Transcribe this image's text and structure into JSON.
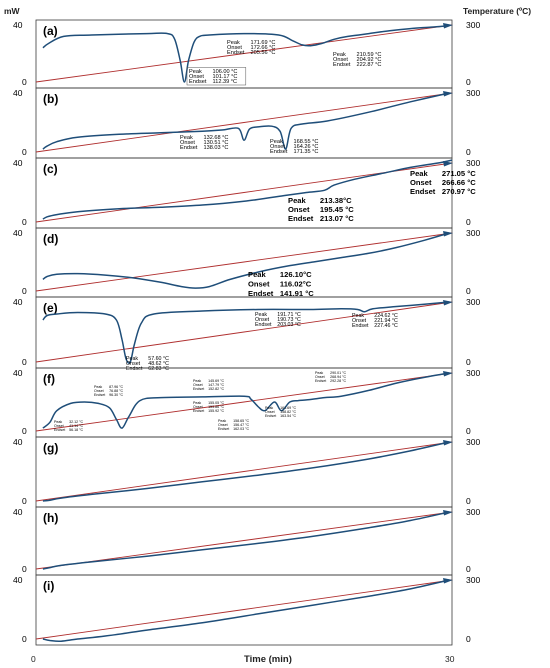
{
  "figure": {
    "y_left_title": "mW",
    "y_right_title": "Temperature (ºC)",
    "x_title": "Time (min)",
    "x_ticks": [
      "0",
      "30"
    ]
  },
  "chart_data": [
    {
      "type": "line",
      "label": "(a)",
      "xlim": [
        0,
        30
      ],
      "ylim_left": [
        0,
        40
      ],
      "ylim_right": [
        0,
        300
      ],
      "left_ticks": [
        "40",
        "0"
      ],
      "right_ticks": [
        "300",
        "0"
      ],
      "grid": false,
      "series": [
        {
          "axis": "left",
          "color": "#1f4e79",
          "x": [
            0.5,
            0.9,
            2,
            4,
            8,
            9.5,
            10.0,
            10.4,
            10.7,
            11.0,
            11.4,
            11.8,
            12.5,
            15,
            17.5,
            18.5,
            19.2,
            19.8,
            20.6,
            21.5,
            22.5,
            24,
            25.5,
            27,
            28.5,
            29.8
          ],
          "y": [
            24,
            27,
            32,
            33,
            34,
            34,
            30,
            15,
            0,
            15,
            28,
            32,
            33,
            34,
            33,
            29,
            26,
            25.5,
            27,
            30,
            32,
            34,
            36,
            37.5,
            38.5,
            39.5
          ]
        },
        {
          "axis": "right",
          "color": "#b03030",
          "x": [
            0,
            30
          ],
          "y": [
            0,
            300
          ]
        }
      ],
      "annotations": [
        {
          "peak": "171.69 °C",
          "onset": "172.66 °C",
          "endset": "205.56 °C"
        },
        {
          "peak": "210.59 °C",
          "onset": "204.92 °C",
          "endset": "222.87 °C"
        },
        {
          "peak": "106.00 °C",
          "onset": "101.17 °C",
          "endset": "112.39 °C"
        }
      ]
    },
    {
      "type": "line",
      "label": "(b)",
      "xlim": [
        0,
        30
      ],
      "ylim_left": [
        0,
        40
      ],
      "ylim_right": [
        0,
        300
      ],
      "left_ticks": [
        "40",
        "0"
      ],
      "right_ticks": [
        "300",
        "0"
      ],
      "grid": false,
      "series": [
        {
          "axis": "left",
          "color": "#1f4e79",
          "x": [
            0.5,
            0.8,
            1.5,
            3,
            6,
            9,
            12,
            13.5,
            14.6,
            15.0,
            15.4,
            16,
            17,
            17.6,
            18.0,
            18.4,
            19.2,
            21,
            24,
            27,
            29.8
          ],
          "y": [
            2,
            4,
            7,
            10,
            12,
            13,
            14,
            15,
            16,
            8,
            15.5,
            17,
            17.5,
            14,
            2,
            16,
            19,
            21,
            27,
            34,
            40
          ]
        },
        {
          "axis": "right",
          "color": "#b03030",
          "x": [
            0,
            30
          ],
          "y": [
            0,
            300
          ]
        }
      ],
      "annotations": [
        {
          "peak": "132.68 °C",
          "onset": "130.51 °C",
          "endset": "138.03 °C"
        },
        {
          "peak": "168.55 °C",
          "onset": "164.26 °C",
          "endset": "171.35 °C"
        }
      ]
    },
    {
      "type": "line",
      "label": "(c)",
      "xlim": [
        0,
        30
      ],
      "ylim_left": [
        0,
        40
      ],
      "ylim_right": [
        0,
        300
      ],
      "left_ticks": [
        "40",
        "0"
      ],
      "right_ticks": [
        "300",
        "0"
      ],
      "grid": false,
      "series": [
        {
          "axis": "left",
          "color": "#1f4e79",
          "x": [
            0.5,
            0.8,
            1.5,
            3,
            6,
            9,
            12,
            15,
            18,
            19.5,
            20.8,
            21.5,
            23,
            25,
            27,
            29,
            30
          ],
          "y": [
            2,
            3.5,
            5,
            7,
            9,
            10,
            11.5,
            14,
            18,
            20,
            21.5,
            25,
            29,
            33,
            37,
            40,
            42
          ]
        },
        {
          "axis": "right",
          "color": "#b03030",
          "x": [
            0,
            30
          ],
          "y": [
            0,
            300
          ]
        }
      ],
      "annotations": [
        {
          "peak": "213.38°C",
          "onset": "195.45 °C",
          "endset": "213.07 °C"
        },
        {
          "peak": "271.05 °C",
          "onset": "266.66 °C",
          "endset": "270.97 °C"
        }
      ]
    },
    {
      "type": "line",
      "label": "(d)",
      "xlim": [
        0,
        30
      ],
      "ylim_left": [
        0,
        40
      ],
      "ylim_right": [
        0,
        300
      ],
      "left_ticks": [
        "40",
        "0"
      ],
      "right_ticks": [
        "300",
        "0"
      ],
      "grid": false,
      "series": [
        {
          "axis": "left",
          "color": "#1f4e79",
          "x": [
            0.5,
            0.8,
            1.5,
            3,
            5,
            7,
            9,
            10.5,
            11.5,
            12.5,
            14,
            16,
            18,
            20,
            22,
            24,
            26,
            28,
            29.8
          ],
          "y": [
            8,
            10,
            11.5,
            12,
            11,
            9,
            6,
            3,
            2,
            3,
            8,
            13,
            17,
            20,
            23,
            26,
            30,
            35,
            40
          ]
        },
        {
          "axis": "right",
          "color": "#b03030",
          "x": [
            0,
            30
          ],
          "y": [
            0,
            300
          ]
        }
      ],
      "annotations": [
        {
          "peak": "126.10°C",
          "onset": "116.02°C",
          "endset": "141.91 °C"
        }
      ]
    },
    {
      "type": "line",
      "label": "(e)",
      "xlim": [
        0,
        30
      ],
      "ylim_left": [
        0,
        40
      ],
      "ylim_right": [
        0,
        300
      ],
      "left_ticks": [
        "40",
        "0"
      ],
      "right_ticks": [
        "300",
        "0"
      ],
      "grid": false,
      "series": [
        {
          "axis": "left",
          "color": "#1f4e79",
          "x": [
            0.5,
            0.8,
            1.5,
            3,
            5,
            5.8,
            6.2,
            6.5,
            6.8,
            7.1,
            7.6,
            8.5,
            12,
            16,
            20,
            22,
            23.2,
            23.7,
            24.3,
            26,
            28,
            29.8
          ],
          "y": [
            28,
            31,
            32,
            33,
            32,
            28,
            15,
            2,
            0,
            12,
            26,
            32,
            34,
            35,
            35,
            35.5,
            35,
            33.5,
            35.5,
            37,
            38.5,
            40
          ]
        },
        {
          "axis": "right",
          "color": "#b03030",
          "x": [
            0,
            30
          ],
          "y": [
            0,
            300
          ]
        }
      ],
      "annotations": [
        {
          "peak": "57.60 °C",
          "onset": "48.62 °C",
          "endset": "62.83 °C"
        },
        {
          "peak": "191.71 °C",
          "onset": "190.73 °C",
          "endset": "203.03 °C"
        },
        {
          "peak": "224.62 °C",
          "onset": "221.94 °C",
          "endset": "227.46 °C"
        }
      ]
    },
    {
      "type": "line",
      "label": "(f)",
      "xlim": [
        0,
        30
      ],
      "ylim_left": [
        0,
        40
      ],
      "ylim_right": [
        0,
        300
      ],
      "left_ticks": [
        "40",
        "0"
      ],
      "right_ticks": [
        "300",
        "0"
      ],
      "grid": false,
      "series": [
        {
          "axis": "left",
          "color": "#1f4e79",
          "x": [
            0.5,
            1.0,
            1.5,
            2.5,
            3.5,
            4.5,
            5.3,
            5.8,
            6.2,
            6.7,
            7.5,
            9,
            12,
            15,
            15.5,
            16,
            16.5,
            17.2,
            17.7,
            18.3,
            18.9,
            19.6,
            20.8,
            22,
            24,
            26,
            28,
            29.8
          ],
          "y": [
            2,
            6,
            14,
            19,
            20,
            19,
            16,
            8,
            2,
            10,
            21,
            23,
            23.5,
            24,
            22,
            17,
            14,
            20,
            14,
            20,
            21,
            21.5,
            23,
            24,
            28,
            33,
            37,
            40
          ]
        },
        {
          "axis": "right",
          "color": "#b03030",
          "x": [
            0,
            30
          ],
          "y": [
            0,
            300
          ]
        }
      ],
      "annotations": [
        {
          "peak": "32.12 °C",
          "onset": "41.14 °C",
          "endset": "56.18 °C"
        },
        {
          "peak": "87.96 °C",
          "onset": "76.88 °C",
          "endset": "96.30 °C"
        },
        {
          "peak": "145.69 °C",
          "onset": "147.79 °C",
          "endset": "152.82 °C"
        },
        {
          "peak": "155.05 °C",
          "onset": "153.86 °C",
          "endset": "155.92 °C"
        },
        {
          "peak": "158.65 °C",
          "onset": "156.47 °C",
          "endset": "162.03 °C"
        },
        {
          "peak": "161.69 °C",
          "onset": "158.82 °C",
          "endset": "163.54 °C"
        },
        {
          "peak": "290.01 °C",
          "onset": "268.94 °C",
          "endset": "292.28 °C"
        }
      ]
    },
    {
      "type": "line",
      "label": "(g)",
      "xlim": [
        0,
        30
      ],
      "ylim_left": [
        0,
        40
      ],
      "ylim_right": [
        0,
        300
      ],
      "left_ticks": [
        "40",
        "0"
      ],
      "right_ticks": [
        "300",
        "0"
      ],
      "grid": false,
      "series": [
        {
          "axis": "left",
          "color": "#1f4e79",
          "x": [
            0.5,
            1.0,
            1.8,
            4,
            8,
            12,
            16,
            20,
            24,
            27,
            29.8
          ],
          "y": [
            0,
            0.5,
            2,
            4.5,
            8.5,
            13,
            17.5,
            22.5,
            28.5,
            34,
            40
          ]
        },
        {
          "axis": "right",
          "color": "#b03030",
          "x": [
            0,
            30
          ],
          "y": [
            0,
            300
          ]
        }
      ],
      "annotations": []
    },
    {
      "type": "line",
      "label": "(h)",
      "xlim": [
        0,
        30
      ],
      "ylim_left": [
        0,
        40
      ],
      "ylim_right": [
        0,
        300
      ],
      "left_ticks": [
        "40",
        "0"
      ],
      "right_ticks": [
        "300",
        "0"
      ],
      "grid": false,
      "series": [
        {
          "axis": "left",
          "color": "#1f4e79",
          "x": [
            0.5,
            1.0,
            1.8,
            4,
            8,
            12,
            16,
            20,
            24,
            27,
            29.8
          ],
          "y": [
            0,
            1,
            2.5,
            5,
            9,
            13.5,
            18,
            23,
            29,
            34,
            40
          ]
        },
        {
          "axis": "right",
          "color": "#b03030",
          "x": [
            0,
            30
          ],
          "y": [
            0,
            300
          ]
        }
      ],
      "annotations": []
    },
    {
      "type": "line",
      "label": "(i)",
      "xlim": [
        0,
        30
      ],
      "ylim_left": [
        0,
        40
      ],
      "ylim_right": [
        0,
        300
      ],
      "left_ticks": [
        "40",
        "0"
      ],
      "right_ticks": [
        "300",
        "0"
      ],
      "grid": false,
      "series": [
        {
          "axis": "left",
          "color": "#1f4e79",
          "x": [
            0.5,
            1.0,
            1.8,
            3,
            5,
            8,
            12,
            16,
            20,
            24,
            27,
            29.8
          ],
          "y": [
            0,
            -1,
            -1.5,
            0,
            2,
            6,
            11,
            17,
            23,
            29,
            34,
            40
          ]
        },
        {
          "axis": "right",
          "color": "#b03030",
          "x": [
            0,
            30
          ],
          "y": [
            0,
            300
          ]
        }
      ],
      "annotations": []
    }
  ]
}
